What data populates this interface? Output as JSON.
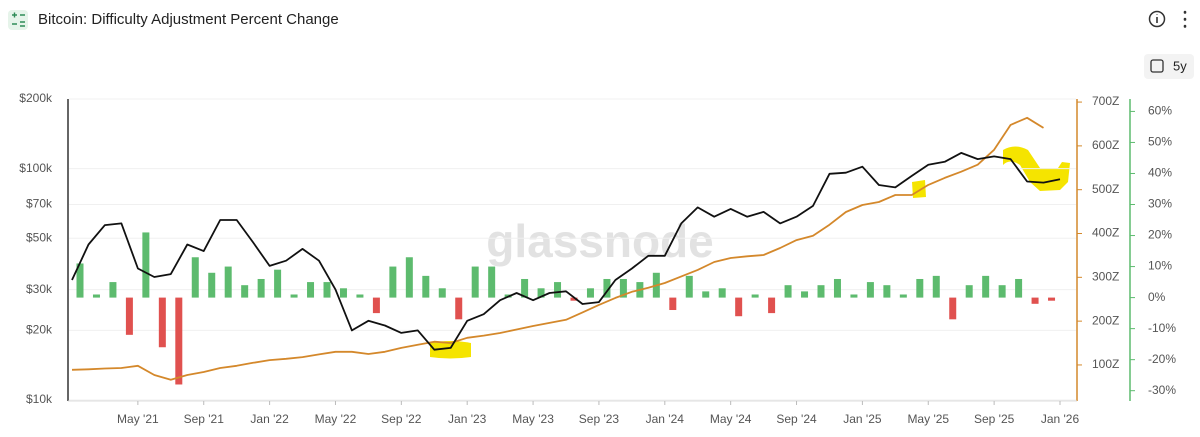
{
  "chart_data": {
    "type": "combo",
    "title": "Bitcoin: Difficulty Adjustment Percent Change",
    "watermark": "glassnode",
    "range_button": "5y",
    "x": [
      "2021-01",
      "2021-02",
      "2021-03",
      "2021-04",
      "2021-05",
      "2021-06",
      "2021-07",
      "2021-08",
      "2021-09",
      "2021-10",
      "2021-11",
      "2021-12",
      "2022-01",
      "2022-02",
      "2022-03",
      "2022-04",
      "2022-05",
      "2022-06",
      "2022-07",
      "2022-08",
      "2022-09",
      "2022-10",
      "2022-11",
      "2022-12",
      "2023-01",
      "2023-02",
      "2023-03",
      "2023-04",
      "2023-05",
      "2023-06",
      "2023-07",
      "2023-08",
      "2023-09",
      "2023-10",
      "2023-11",
      "2023-12",
      "2024-01",
      "2024-02",
      "2024-03",
      "2024-04",
      "2024-05",
      "2024-06",
      "2024-07",
      "2024-08",
      "2024-09",
      "2024-10",
      "2024-11",
      "2024-12",
      "2025-01",
      "2025-02",
      "2025-03",
      "2025-04",
      "2025-05",
      "2025-06",
      "2025-07",
      "2025-08",
      "2025-09",
      "2025-10",
      "2025-11",
      "2025-12",
      "2026-01"
    ],
    "xlim": [
      "2021-01",
      "2026-01"
    ],
    "xticks": [
      {
        "value": "2021-05",
        "label": "May '21"
      },
      {
        "value": "2021-09",
        "label": "Sep '21"
      },
      {
        "value": "2022-01",
        "label": "Jan '22"
      },
      {
        "value": "2022-05",
        "label": "May '22"
      },
      {
        "value": "2022-09",
        "label": "Sep '22"
      },
      {
        "value": "2023-01",
        "label": "Jan '23"
      },
      {
        "value": "2023-05",
        "label": "May '23"
      },
      {
        "value": "2023-09",
        "label": "Sep '23"
      },
      {
        "value": "2024-01",
        "label": "Jan '24"
      },
      {
        "value": "2024-05",
        "label": "May '24"
      },
      {
        "value": "2024-09",
        "label": "Sep '24"
      },
      {
        "value": "2025-01",
        "label": "Jan '25"
      },
      {
        "value": "2025-05",
        "label": "May '25"
      },
      {
        "value": "2025-09",
        "label": "Sep '25"
      },
      {
        "value": "2026-01",
        "label": "Jan '26"
      }
    ],
    "ylim": [
      10000,
      200000
    ],
    "log_y": true,
    "grid": true,
    "yticks": [
      {
        "value": 10000,
        "label": "$10k"
      },
      {
        "value": 20000,
        "label": "$20k"
      },
      {
        "value": 30000,
        "label": "$30k"
      },
      {
        "value": 50000,
        "label": "$50k"
      },
      {
        "value": 70000,
        "label": "$70k"
      },
      {
        "value": 100000,
        "label": "$100k"
      },
      {
        "value": 200000,
        "label": "$200k"
      }
    ],
    "y2lim": [
      20,
      707
    ],
    "y2ticks": [
      {
        "value": 100,
        "label": "100Z"
      },
      {
        "value": 200,
        "label": "200Z"
      },
      {
        "value": 300,
        "label": "300Z"
      },
      {
        "value": 400,
        "label": "400Z"
      },
      {
        "value": 500,
        "label": "500Z"
      },
      {
        "value": 600,
        "label": "600Z"
      },
      {
        "value": 700,
        "label": "700Z"
      }
    ],
    "y2color": "#d4882b",
    "y3lim": [
      -33,
      64
    ],
    "y3ticks": [
      {
        "value": -30,
        "label": "-30%"
      },
      {
        "value": -20,
        "label": "-20%"
      },
      {
        "value": -10,
        "label": "-10%"
      },
      {
        "value": 0,
        "label": "0%"
      },
      {
        "value": 10,
        "label": "10%"
      },
      {
        "value": 20,
        "label": "20%"
      },
      {
        "value": 30,
        "label": "30%"
      },
      {
        "value": 40,
        "label": "40%"
      },
      {
        "value": 50,
        "label": "50%"
      },
      {
        "value": 60,
        "label": "60%"
      }
    ],
    "y3color": "#5dbb6e",
    "series": [
      {
        "type": "bar",
        "axis": "y3",
        "color": "#5dbb6e",
        "negative_color": "#e0514f",
        "values": [
          11,
          1,
          5,
          -12,
          21,
          -16,
          -28,
          13,
          8,
          10,
          4,
          6,
          9,
          1,
          5,
          5,
          3,
          1,
          -5,
          10,
          13,
          7,
          3,
          -7,
          10,
          10,
          1,
          6,
          3,
          5,
          -1,
          3,
          6,
          6,
          5,
          8,
          -4,
          7,
          2,
          3,
          -6,
          1,
          -5,
          4,
          2,
          4,
          6,
          1,
          5,
          4,
          1,
          6,
          7,
          -7,
          4,
          7,
          4,
          6,
          -2,
          -1,
          null
        ]
      },
      {
        "type": "line",
        "axis": "y2",
        "color": "#d4882b",
        "values": [
          89,
          90,
          92,
          93,
          98,
          77,
          66,
          77,
          84,
          93,
          98,
          105,
          111,
          114,
          118,
          124,
          130,
          130,
          125,
          130,
          139,
          146,
          153,
          150,
          162,
          167,
          173,
          181,
          189,
          196,
          203,
          220,
          237,
          253,
          267,
          276,
          287,
          302,
          317,
          335,
          344,
          348,
          351,
          367,
          385,
          395,
          420,
          449,
          465,
          472,
          488,
          488,
          511,
          527,
          541,
          557,
          591,
          648,
          664,
          641,
          null
        ]
      },
      {
        "type": "line",
        "axis": "y",
        "color": "#111111",
        "values": [
          33000,
          47000,
          57000,
          58000,
          37000,
          34000,
          35000,
          47000,
          44000,
          60000,
          60000,
          48000,
          38000,
          40000,
          45000,
          40000,
          30000,
          20000,
          22000,
          21000,
          19500,
          20000,
          16500,
          16800,
          22000,
          23500,
          27000,
          29000,
          27000,
          29000,
          29500,
          26000,
          26500,
          33000,
          37000,
          42000,
          42000,
          58000,
          68000,
          62000,
          67000,
          62000,
          65000,
          58000,
          62000,
          69000,
          95000,
          96000,
          102000,
          85000,
          83000,
          93000,
          104000,
          107000,
          117000,
          110000,
          113000,
          110000,
          88000,
          87000,
          90000
        ]
      }
    ]
  }
}
